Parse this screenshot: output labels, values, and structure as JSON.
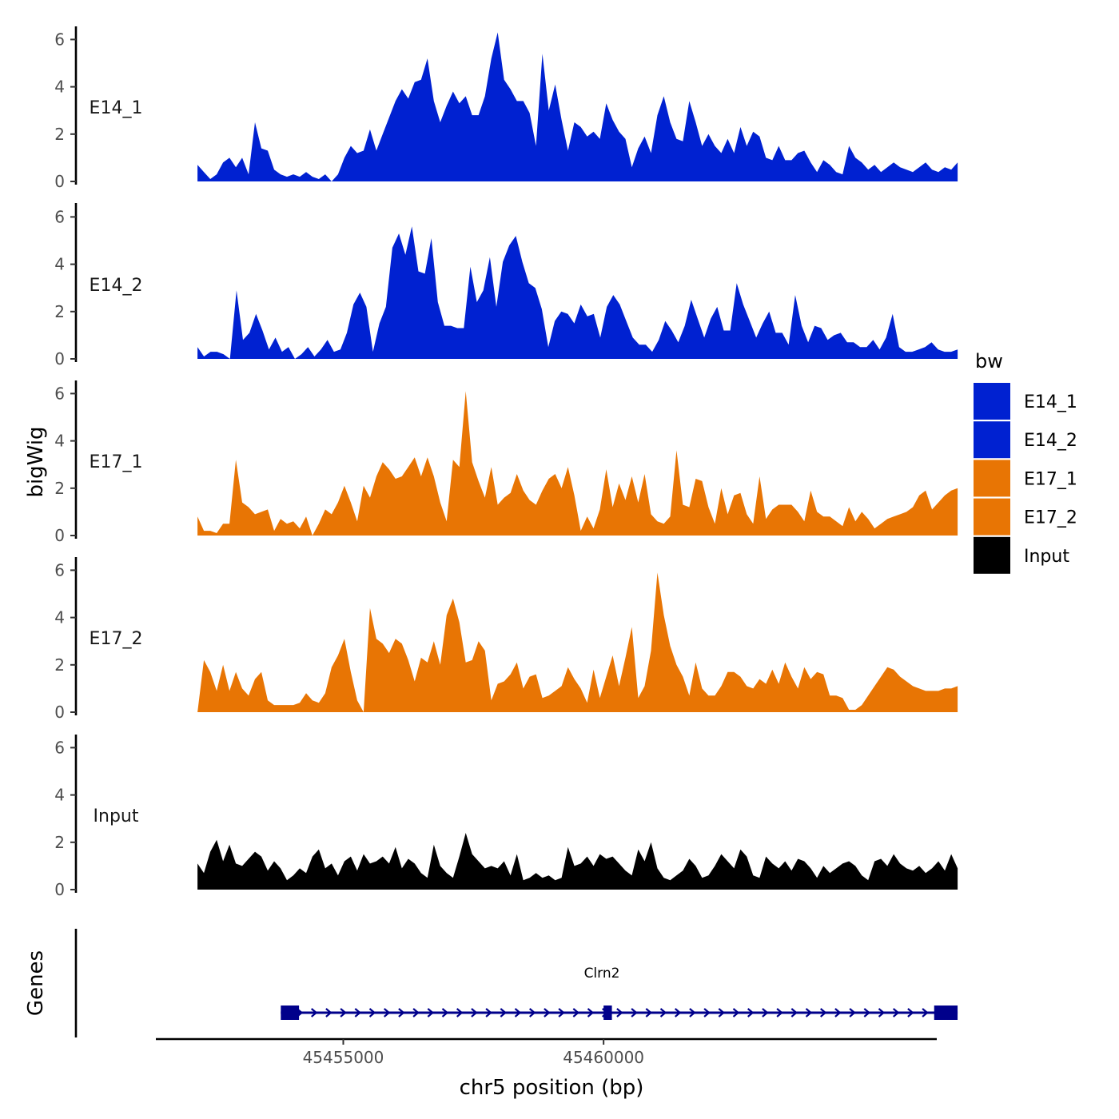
{
  "chart_data": {
    "type": "area",
    "title": "",
    "ylabel": "bigWig",
    "xlabel": "chr5 position (bp)",
    "gene_track_label": "Genes",
    "xlim": [
      45451400,
      45466400
    ],
    "ylim": [
      0,
      6.5
    ],
    "y_ticks": [
      0,
      2,
      4,
      6
    ],
    "x_ticks": [
      {
        "value": 45455000,
        "label": "45455000"
      },
      {
        "value": 45460000,
        "label": "45460000"
      }
    ],
    "x_range": [
      45452200,
      45466800
    ],
    "legend": {
      "title": "bw",
      "position": "right",
      "items": [
        {
          "label": "E14_1",
          "color": "#0021D1"
        },
        {
          "label": "E14_2",
          "color": "#0021D1"
        },
        {
          "label": "E17_1",
          "color": "#E87504"
        },
        {
          "label": "E17_2",
          "color": "#E87504"
        },
        {
          "label": "Input",
          "color": "#000000"
        }
      ]
    },
    "series": [
      {
        "name": "E14_1",
        "color": "#0021D1",
        "values": [
          0.7,
          0.4,
          0.1,
          0.3,
          0.8,
          1.0,
          0.6,
          1.0,
          0.3,
          2.5,
          1.4,
          1.3,
          0.5,
          0.3,
          0.2,
          0.3,
          0.2,
          0.4,
          0.2,
          0.1,
          0.3,
          0.0,
          0.3,
          1.0,
          1.5,
          1.2,
          1.3,
          2.2,
          1.3,
          2.0,
          2.7,
          3.4,
          3.9,
          3.5,
          4.2,
          4.3,
          5.2,
          3.4,
          2.5,
          3.2,
          3.8,
          3.3,
          3.6,
          2.8,
          2.8,
          3.6,
          5.2,
          6.3,
          4.3,
          3.9,
          3.4,
          3.4,
          2.9,
          1.5,
          5.4,
          3.0,
          4.1,
          2.6,
          1.3,
          2.5,
          2.3,
          1.9,
          2.1,
          1.8,
          3.3,
          2.6,
          2.1,
          1.8,
          0.6,
          1.4,
          1.9,
          1.2,
          2.8,
          3.6,
          2.5,
          1.8,
          1.7,
          3.4,
          2.5,
          1.5,
          2.0,
          1.5,
          1.2,
          1.8,
          1.2,
          2.3,
          1.5,
          2.1,
          1.9,
          1.0,
          0.9,
          1.5,
          0.9,
          0.9,
          1.2,
          1.3,
          0.8,
          0.4,
          0.9,
          0.7,
          0.4,
          0.3,
          1.5,
          1.0,
          0.8,
          0.5,
          0.7,
          0.4,
          0.6,
          0.8,
          0.6,
          0.5,
          0.4,
          0.6,
          0.8,
          0.5,
          0.4,
          0.6,
          0.5,
          0.8
        ]
      },
      {
        "name": "E14_2",
        "color": "#0021D1",
        "values": [
          0.5,
          0.1,
          0.3,
          0.3,
          0.2,
          0.0,
          2.9,
          0.8,
          1.1,
          1.9,
          1.2,
          0.4,
          0.9,
          0.3,
          0.5,
          0.0,
          0.2,
          0.5,
          0.1,
          0.4,
          0.8,
          0.3,
          0.4,
          1.1,
          2.3,
          2.8,
          2.2,
          0.3,
          1.5,
          2.2,
          4.7,
          5.3,
          4.4,
          5.6,
          3.7,
          3.6,
          5.1,
          2.4,
          1.4,
          1.4,
          1.3,
          1.3,
          3.9,
          2.4,
          2.9,
          4.3,
          2.2,
          4.1,
          4.8,
          5.2,
          4.1,
          3.2,
          3.0,
          2.1,
          0.5,
          1.6,
          2.0,
          1.9,
          1.5,
          2.3,
          1.8,
          1.9,
          0.9,
          2.2,
          2.7,
          2.3,
          1.6,
          0.9,
          0.6,
          0.6,
          0.3,
          0.8,
          1.6,
          1.2,
          0.7,
          1.4,
          2.5,
          1.7,
          0.9,
          1.7,
          2.2,
          1.2,
          1.2,
          3.2,
          2.3,
          1.6,
          0.9,
          1.5,
          2.0,
          1.1,
          1.1,
          0.6,
          2.7,
          1.4,
          0.7,
          1.4,
          1.3,
          0.8,
          1.0,
          1.1,
          0.7,
          0.7,
          0.5,
          0.5,
          0.8,
          0.4,
          0.9,
          1.9,
          0.5,
          0.3,
          0.3,
          0.4,
          0.5,
          0.7,
          0.4,
          0.3,
          0.3,
          0.4
        ]
      },
      {
        "name": "E17_1",
        "color": "#E87504",
        "values": [
          0.8,
          0.2,
          0.2,
          0.1,
          0.5,
          0.5,
          3.2,
          1.4,
          1.2,
          0.9,
          1.0,
          1.1,
          0.2,
          0.7,
          0.5,
          0.6,
          0.3,
          0.8,
          0.0,
          0.5,
          1.1,
          0.9,
          1.4,
          2.1,
          1.4,
          0.6,
          2.1,
          1.6,
          2.5,
          3.1,
          2.8,
          2.4,
          2.5,
          2.9,
          3.3,
          2.5,
          3.3,
          2.5,
          1.4,
          0.6,
          3.2,
          2.9,
          6.1,
          3.1,
          2.3,
          1.6,
          2.9,
          1.3,
          1.6,
          1.8,
          2.6,
          1.9,
          1.5,
          1.3,
          1.9,
          2.4,
          2.6,
          2.0,
          2.9,
          1.7,
          0.2,
          0.8,
          0.3,
          1.1,
          2.8,
          1.2,
          2.2,
          1.5,
          2.5,
          1.4,
          2.6,
          0.9,
          0.6,
          0.5,
          0.8,
          3.6,
          1.3,
          1.2,
          2.4,
          2.3,
          1.2,
          0.5,
          2.0,
          0.9,
          1.7,
          1.8,
          0.9,
          0.5,
          2.5,
          0.7,
          1.1,
          1.3,
          1.3,
          1.3,
          1.0,
          0.6,
          1.9,
          1.0,
          0.8,
          0.8,
          0.6,
          0.4,
          1.2,
          0.6,
          1.0,
          0.7,
          0.3,
          0.5,
          0.7,
          0.8,
          0.9,
          1.0,
          1.2,
          1.7,
          1.9,
          1.1,
          1.4,
          1.7,
          1.9,
          2.0
        ]
      },
      {
        "name": "E17_2",
        "color": "#E87504",
        "values": [
          0.0,
          2.2,
          1.7,
          0.9,
          2.0,
          0.9,
          1.7,
          1.0,
          0.7,
          1.4,
          1.7,
          0.5,
          0.3,
          0.3,
          0.3,
          0.3,
          0.4,
          0.8,
          0.5,
          0.4,
          0.8,
          1.9,
          2.4,
          3.1,
          1.7,
          0.5,
          0.0,
          4.4,
          3.1,
          2.9,
          2.5,
          3.1,
          2.9,
          2.2,
          1.3,
          2.3,
          2.1,
          3.0,
          2.0,
          4.1,
          4.8,
          3.8,
          2.1,
          2.2,
          3.0,
          2.6,
          0.5,
          1.2,
          1.3,
          1.6,
          2.1,
          1.0,
          1.5,
          1.6,
          0.6,
          0.7,
          0.9,
          1.1,
          1.9,
          1.4,
          1.0,
          0.4,
          1.8,
          0.6,
          1.5,
          2.4,
          1.1,
          2.3,
          3.6,
          0.6,
          1.1,
          2.6,
          5.9,
          4.1,
          2.8,
          2.0,
          1.5,
          0.7,
          2.1,
          1.0,
          0.7,
          0.7,
          1.1,
          1.7,
          1.7,
          1.5,
          1.1,
          1.0,
          1.4,
          1.2,
          1.8,
          1.2,
          2.1,
          1.5,
          1.0,
          1.9,
          1.4,
          1.7,
          1.6,
          0.7,
          0.7,
          0.6,
          0.1,
          0.1,
          0.3,
          0.7,
          1.1,
          1.5,
          1.9,
          1.8,
          1.5,
          1.3,
          1.1,
          1.0,
          0.9,
          0.9,
          0.9,
          1.0,
          1.0,
          1.1
        ]
      },
      {
        "name": "Input",
        "color": "#000000",
        "values": [
          1.1,
          0.7,
          1.6,
          2.1,
          1.2,
          1.9,
          1.1,
          1.0,
          1.3,
          1.6,
          1.4,
          0.8,
          1.2,
          0.9,
          0.4,
          0.6,
          0.9,
          0.7,
          1.4,
          1.7,
          0.9,
          1.1,
          0.6,
          1.2,
          1.4,
          0.8,
          1.5,
          1.1,
          1.2,
          1.4,
          1.1,
          1.8,
          0.9,
          1.3,
          1.1,
          0.7,
          0.5,
          1.9,
          1.0,
          0.7,
          0.5,
          1.4,
          2.4,
          1.5,
          1.2,
          0.9,
          1.0,
          0.9,
          1.2,
          0.6,
          1.5,
          0.4,
          0.5,
          0.7,
          0.5,
          0.6,
          0.4,
          0.5,
          1.8,
          1.0,
          1.1,
          1.4,
          1.0,
          1.5,
          1.3,
          1.4,
          1.1,
          0.8,
          0.6,
          1.7,
          1.2,
          2.0,
          0.9,
          0.5,
          0.4,
          0.6,
          0.8,
          1.3,
          1.0,
          0.5,
          0.6,
          1.0,
          1.5,
          1.2,
          0.9,
          1.7,
          1.4,
          0.6,
          0.5,
          1.4,
          1.1,
          0.9,
          1.2,
          0.8,
          1.3,
          1.2,
          0.9,
          0.5,
          1.0,
          0.7,
          0.9,
          1.1,
          1.2,
          1.0,
          0.6,
          0.4,
          1.2,
          1.3,
          1.0,
          1.5,
          1.1,
          0.9,
          0.8,
          1.0,
          0.7,
          0.9,
          1.2,
          0.8,
          1.5,
          0.9
        ]
      }
    ],
    "gene": {
      "name": "Clrn2",
      "strand": "+",
      "color": "#00008B",
      "start": 45453800,
      "end": 45466800,
      "exons": [
        {
          "start": 45453800,
          "end": 45454150
        },
        {
          "start": 45460000,
          "end": 45460160
        },
        {
          "start": 45466350,
          "end": 45466800
        }
      ]
    }
  }
}
